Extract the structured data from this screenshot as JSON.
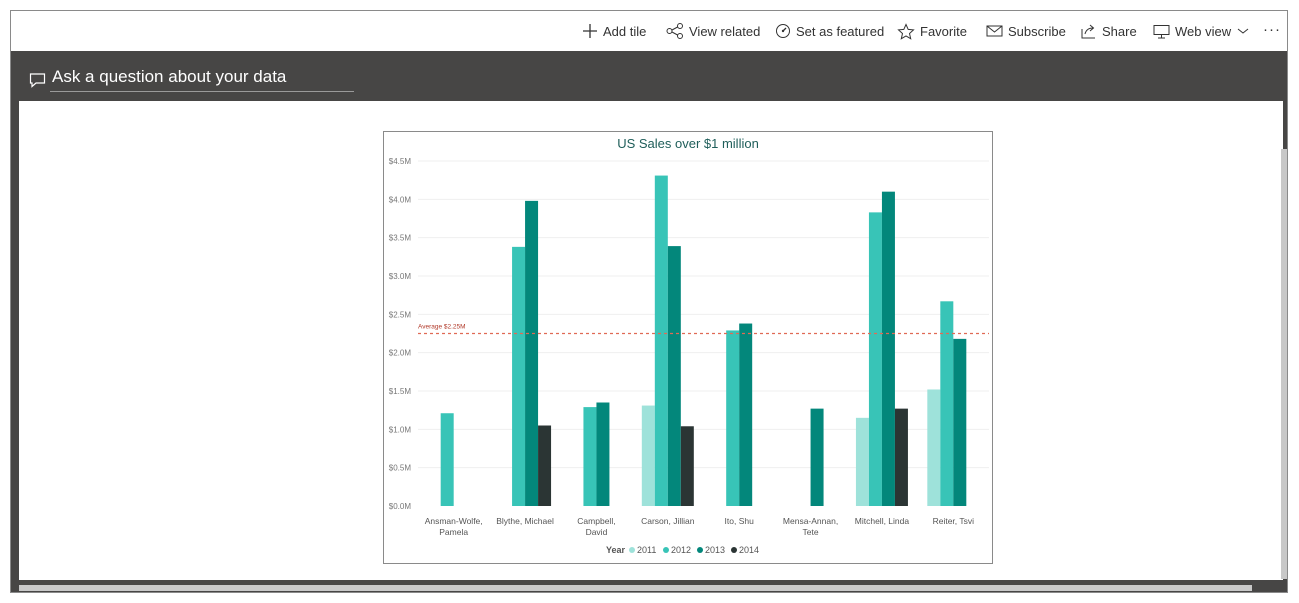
{
  "toolbar": {
    "add_tile": "Add tile",
    "view_related": "View related",
    "set_featured": "Set as featured",
    "favorite": "Favorite",
    "subscribe": "Subscribe",
    "share": "Share",
    "web_view": "Web view",
    "more": "···"
  },
  "qa": {
    "placeholder": "Ask a question about your data"
  },
  "chart_data": {
    "type": "bar",
    "title": "US Sales over $1 million",
    "categories": [
      "Ansman-Wolfe,\nPamela",
      "Blythe, Michael",
      "Campbell,\nDavid",
      "Carson, Jillian",
      "Ito, Shu",
      "Mensa-Annan,\nTete",
      "Mitchell, Linda",
      "Reiter, Tsvi"
    ],
    "legend_title": "Year",
    "series": [
      {
        "name": "2011",
        "color": "#9ee2da",
        "values": [
          null,
          null,
          null,
          1.31,
          null,
          null,
          1.15,
          1.52
        ]
      },
      {
        "name": "2012",
        "color": "#38c4b7",
        "values": [
          1.21,
          3.38,
          1.29,
          4.31,
          2.29,
          null,
          3.83,
          2.67
        ]
      },
      {
        "name": "2013",
        "color": "#03877b",
        "values": [
          null,
          3.98,
          1.35,
          3.39,
          2.38,
          1.27,
          4.1,
          2.18
        ]
      },
      {
        "name": "2014",
        "color": "#2b3534",
        "values": [
          null,
          1.05,
          null,
          1.04,
          null,
          null,
          1.27,
          null
        ]
      }
    ],
    "ylim": [
      0,
      4.5
    ],
    "yticks": [
      "$0.0M",
      "$0.5M",
      "$1.0M",
      "$1.5M",
      "$2.0M",
      "$2.5M",
      "$3.0M",
      "$3.5M",
      "$4.0M",
      "$4.5M"
    ],
    "average": {
      "value": 2.25,
      "label": "Average $2.25M",
      "color": "#e06a55"
    },
    "grid": true,
    "legend_position": "bottom"
  }
}
